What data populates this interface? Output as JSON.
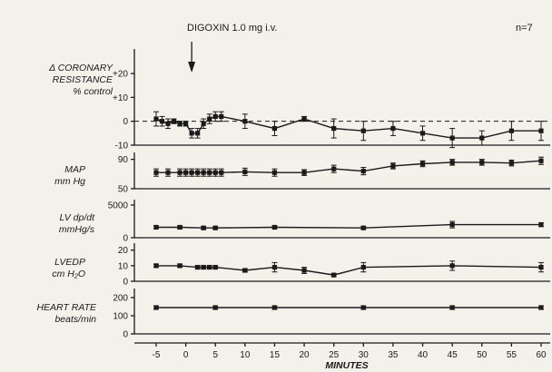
{
  "chart_data": {
    "type": "line",
    "annotation": "DIGOXIN 1.0 mg i.v.",
    "n_label": "n=7",
    "xlabel": "MINUTES",
    "xlim": [
      -7,
      62
    ],
    "x_ticks": [
      -5,
      0,
      5,
      10,
      15,
      20,
      25,
      30,
      35,
      40,
      45,
      50,
      55,
      60
    ],
    "panels": [
      {
        "label_lines": [
          "Δ CORONARY",
          "RESISTANCE",
          "% control"
        ],
        "ylim": [
          -10,
          28
        ],
        "y_ticks": [
          -10,
          0,
          10,
          20
        ],
        "y_tick_labels": [
          "-10",
          "0",
          "+10",
          "+20"
        ],
        "baseline_dashed": 0,
        "x": [
          -5,
          -4,
          -3,
          -2,
          -1,
          0,
          1,
          2,
          3,
          4,
          5,
          6,
          10,
          15,
          20,
          25,
          30,
          35,
          40,
          45,
          50,
          55,
          60
        ],
        "y": [
          1,
          0,
          -1,
          0,
          -1,
          -1,
          -5,
          -5,
          -1,
          1,
          2,
          2,
          0,
          -3,
          1,
          -3,
          -4,
          -3,
          -5,
          -7,
          -7,
          -4,
          -4
        ],
        "err": [
          3,
          2,
          2,
          1,
          1,
          1,
          2,
          2,
          2,
          2,
          2,
          2,
          3,
          3,
          1,
          4,
          4,
          3,
          3,
          4,
          3,
          4,
          4
        ]
      },
      {
        "label_lines": [
          "MAP",
          "mm Hg"
        ],
        "ylim": [
          50,
          92
        ],
        "y_ticks": [
          50,
          90
        ],
        "y_tick_labels": [
          "50",
          "90"
        ],
        "x": [
          -5,
          -3,
          -1,
          0,
          1,
          2,
          3,
          4,
          5,
          6,
          10,
          15,
          20,
          25,
          30,
          35,
          40,
          45,
          50,
          55,
          60
        ],
        "y": [
          72,
          72,
          72,
          72,
          72,
          72,
          72,
          72,
          72,
          72,
          73,
          72,
          72,
          77,
          74,
          81,
          84,
          86,
          86,
          85,
          88
        ],
        "err": [
          5,
          5,
          5,
          5,
          5,
          5,
          5,
          5,
          5,
          5,
          5,
          5,
          4,
          5,
          5,
          4,
          4,
          4,
          4,
          4,
          5
        ]
      },
      {
        "label_lines": [
          "LV dp/dt",
          "mmHg/s"
        ],
        "ylim": [
          0,
          5000
        ],
        "y_ticks": [
          0,
          5000
        ],
        "y_tick_labels": [
          "0",
          "5000"
        ],
        "x": [
          -5,
          -1,
          3,
          5,
          15,
          30,
          45,
          60
        ],
        "y": [
          1600,
          1600,
          1500,
          1500,
          1600,
          1500,
          2000,
          2000
        ],
        "err": [
          200,
          200,
          200,
          200,
          200,
          200,
          500,
          300
        ]
      },
      {
        "label_lines": [
          "LVEDP",
          "cm H₂O"
        ],
        "ylim": [
          0,
          21
        ],
        "y_ticks": [
          0,
          10,
          20
        ],
        "y_tick_labels": [
          "0",
          "10",
          "20"
        ],
        "x": [
          -5,
          -1,
          2,
          3,
          4,
          5,
          10,
          15,
          20,
          25,
          30,
          45,
          60
        ],
        "y": [
          10,
          10,
          9,
          9,
          9,
          9,
          7,
          9,
          7,
          4,
          9,
          10,
          9
        ],
        "err": [
          1,
          1,
          1,
          1,
          1,
          1,
          1,
          3,
          2,
          1,
          3,
          3,
          3
        ]
      },
      {
        "label_lines": [
          "HEART RATE",
          "beats/min"
        ],
        "ylim": [
          0,
          220
        ],
        "y_ticks": [
          0,
          100,
          200
        ],
        "y_tick_labels": [
          "0",
          "100",
          "200"
        ],
        "x": [
          -5,
          5,
          15,
          30,
          45,
          60
        ],
        "y": [
          145,
          145,
          145,
          145,
          145,
          145
        ],
        "err": [
          10,
          10,
          10,
          10,
          10,
          10
        ]
      }
    ]
  }
}
